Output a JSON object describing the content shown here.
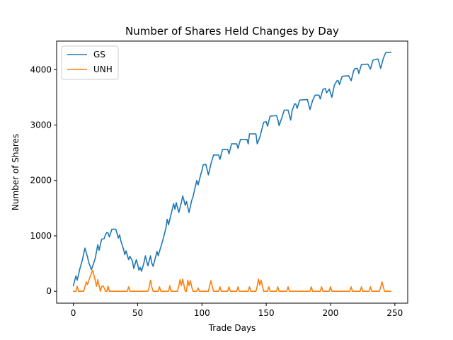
{
  "chart_data": {
    "type": "line",
    "title": "Number of Shares Held Changes by Day",
    "xlabel": "Trade Days",
    "ylabel": "Number of Shares",
    "xlim": [
      -13,
      260
    ],
    "ylim": [
      -215,
      4515
    ],
    "xticks": [
      0,
      50,
      100,
      150,
      200,
      250
    ],
    "yticks": [
      0,
      1000,
      2000,
      3000,
      4000
    ],
    "grid": false,
    "legend_position": "top-left",
    "series": [
      {
        "name": "GS",
        "color": "#1f77b4",
        "points": [
          [
            0,
            100
          ],
          [
            2,
            280
          ],
          [
            3,
            200
          ],
          [
            5,
            400
          ],
          [
            7,
            560
          ],
          [
            9,
            780
          ],
          [
            11,
            620
          ],
          [
            12,
            520
          ],
          [
            14,
            390
          ],
          [
            16,
            520
          ],
          [
            17,
            590
          ],
          [
            19,
            840
          ],
          [
            20,
            740
          ],
          [
            22,
            940
          ],
          [
            24,
            950
          ],
          [
            25,
            1020
          ],
          [
            26,
            1060
          ],
          [
            27,
            1050
          ],
          [
            28,
            980
          ],
          [
            30,
            1120
          ],
          [
            33,
            1120
          ],
          [
            35,
            960
          ],
          [
            36,
            1020
          ],
          [
            37,
            910
          ],
          [
            39,
            760
          ],
          [
            40,
            660
          ],
          [
            41,
            730
          ],
          [
            43,
            570
          ],
          [
            44,
            630
          ],
          [
            46,
            540
          ],
          [
            47,
            410
          ],
          [
            49,
            570
          ],
          [
            50,
            480
          ],
          [
            51,
            380
          ],
          [
            52,
            430
          ],
          [
            53,
            360
          ],
          [
            55,
            520
          ],
          [
            56,
            640
          ],
          [
            57,
            540
          ],
          [
            58,
            460
          ],
          [
            60,
            640
          ],
          [
            61,
            510
          ],
          [
            62,
            450
          ],
          [
            64,
            620
          ],
          [
            65,
            720
          ],
          [
            66,
            640
          ],
          [
            68,
            800
          ],
          [
            70,
            960
          ],
          [
            72,
            1140
          ],
          [
            73,
            1300
          ],
          [
            74,
            1200
          ],
          [
            76,
            1390
          ],
          [
            78,
            1580
          ],
          [
            79,
            1480
          ],
          [
            80,
            1600
          ],
          [
            82,
            1420
          ],
          [
            84,
            1600
          ],
          [
            85,
            1720
          ],
          [
            86,
            1640
          ],
          [
            87,
            1550
          ],
          [
            88,
            1620
          ],
          [
            90,
            1420
          ],
          [
            92,
            1640
          ],
          [
            93,
            1700
          ],
          [
            95,
            1900
          ],
          [
            96,
            2000
          ],
          [
            97,
            1920
          ],
          [
            99,
            2100
          ],
          [
            100,
            2180
          ],
          [
            101,
            2280
          ],
          [
            103,
            2290
          ],
          [
            105,
            2100
          ],
          [
            107,
            2300
          ],
          [
            109,
            2460
          ],
          [
            113,
            2460
          ],
          [
            114,
            2380
          ],
          [
            116,
            2560
          ],
          [
            120,
            2560
          ],
          [
            121,
            2480
          ],
          [
            123,
            2660
          ],
          [
            127,
            2660
          ],
          [
            128,
            2580
          ],
          [
            130,
            2740
          ],
          [
            135,
            2740
          ],
          [
            136,
            2660
          ],
          [
            137,
            2840
          ],
          [
            142,
            2840
          ],
          [
            143,
            2660
          ],
          [
            145,
            2780
          ],
          [
            147,
            2960
          ],
          [
            148,
            3050
          ],
          [
            150,
            3060
          ],
          [
            151,
            2980
          ],
          [
            153,
            3160
          ],
          [
            158,
            3170
          ],
          [
            159,
            3100
          ],
          [
            160,
            2990
          ],
          [
            162,
            3120
          ],
          [
            164,
            3270
          ],
          [
            167,
            3270
          ],
          [
            169,
            3090
          ],
          [
            170,
            3250
          ],
          [
            172,
            3380
          ],
          [
            173,
            3380
          ],
          [
            174,
            3300
          ],
          [
            176,
            3450
          ],
          [
            182,
            3460
          ],
          [
            184,
            3280
          ],
          [
            186,
            3440
          ],
          [
            188,
            3540
          ],
          [
            191,
            3540
          ],
          [
            192,
            3470
          ],
          [
            194,
            3640
          ],
          [
            196,
            3660
          ],
          [
            197,
            3580
          ],
          [
            199,
            3650
          ],
          [
            201,
            3500
          ],
          [
            203,
            3720
          ],
          [
            205,
            3800
          ],
          [
            206,
            3800
          ],
          [
            207,
            3730
          ],
          [
            209,
            3880
          ],
          [
            214,
            3890
          ],
          [
            216,
            3800
          ],
          [
            218,
            3980
          ],
          [
            219,
            4020
          ],
          [
            221,
            4020
          ],
          [
            222,
            3930
          ],
          [
            224,
            4090
          ],
          [
            229,
            4100
          ],
          [
            231,
            4010
          ],
          [
            233,
            4170
          ],
          [
            236,
            4190
          ],
          [
            237,
            4190
          ],
          [
            239,
            4020
          ],
          [
            241,
            4200
          ],
          [
            243,
            4310
          ],
          [
            247,
            4310
          ]
        ]
      },
      {
        "name": "UNH",
        "color": "#ff7f0e",
        "points": [
          [
            0,
            0
          ],
          [
            2,
            0
          ],
          [
            3,
            90
          ],
          [
            4,
            0
          ],
          [
            8,
            0
          ],
          [
            10,
            170
          ],
          [
            11,
            120
          ],
          [
            13,
            260
          ],
          [
            15,
            380
          ],
          [
            16,
            290
          ],
          [
            17,
            200
          ],
          [
            18,
            90
          ],
          [
            19,
            210
          ],
          [
            20,
            100
          ],
          [
            21,
            0
          ],
          [
            22,
            80
          ],
          [
            23,
            100
          ],
          [
            24,
            60
          ],
          [
            25,
            0
          ],
          [
            26,
            0
          ],
          [
            27,
            90
          ],
          [
            28,
            0
          ],
          [
            42,
            0
          ],
          [
            43,
            80
          ],
          [
            44,
            0
          ],
          [
            58,
            0
          ],
          [
            59,
            80
          ],
          [
            60,
            200
          ],
          [
            61,
            80
          ],
          [
            62,
            0
          ],
          [
            66,
            0
          ],
          [
            67,
            80
          ],
          [
            68,
            0
          ],
          [
            74,
            0
          ],
          [
            75,
            100
          ],
          [
            76,
            0
          ],
          [
            81,
            0
          ],
          [
            82,
            100
          ],
          [
            83,
            210
          ],
          [
            84,
            100
          ],
          [
            85,
            220
          ],
          [
            86,
            110
          ],
          [
            87,
            0
          ],
          [
            88,
            0
          ],
          [
            89,
            200
          ],
          [
            90,
            100
          ],
          [
            91,
            190
          ],
          [
            92,
            80
          ],
          [
            93,
            0
          ],
          [
            96,
            0
          ],
          [
            97,
            60
          ],
          [
            98,
            0
          ],
          [
            105,
            0
          ],
          [
            106,
            100
          ],
          [
            107,
            190
          ],
          [
            108,
            90
          ],
          [
            109,
            0
          ],
          [
            113,
            0
          ],
          [
            114,
            80
          ],
          [
            115,
            0
          ],
          [
            120,
            0
          ],
          [
            121,
            80
          ],
          [
            122,
            0
          ],
          [
            127,
            0
          ],
          [
            128,
            80
          ],
          [
            129,
            0
          ],
          [
            136,
            0
          ],
          [
            137,
            80
          ],
          [
            138,
            0
          ],
          [
            142,
            0
          ],
          [
            143,
            90
          ],
          [
            144,
            220
          ],
          [
            145,
            110
          ],
          [
            146,
            200
          ],
          [
            147,
            100
          ],
          [
            148,
            0
          ],
          [
            151,
            0
          ],
          [
            152,
            80
          ],
          [
            153,
            0
          ],
          [
            158,
            0
          ],
          [
            159,
            80
          ],
          [
            160,
            0
          ],
          [
            166,
            0
          ],
          [
            167,
            80
          ],
          [
            168,
            0
          ],
          [
            184,
            0
          ],
          [
            185,
            80
          ],
          [
            186,
            0
          ],
          [
            192,
            0
          ],
          [
            193,
            80
          ],
          [
            194,
            0
          ],
          [
            199,
            0
          ],
          [
            200,
            80
          ],
          [
            201,
            0
          ],
          [
            215,
            0
          ],
          [
            216,
            80
          ],
          [
            217,
            0
          ],
          [
            223,
            0
          ],
          [
            224,
            80
          ],
          [
            225,
            0
          ],
          [
            230,
            0
          ],
          [
            231,
            80
          ],
          [
            232,
            0
          ],
          [
            238,
            0
          ],
          [
            239,
            70
          ],
          [
            240,
            170
          ],
          [
            241,
            80
          ],
          [
            242,
            0
          ],
          [
            247,
            0
          ]
        ]
      }
    ]
  }
}
